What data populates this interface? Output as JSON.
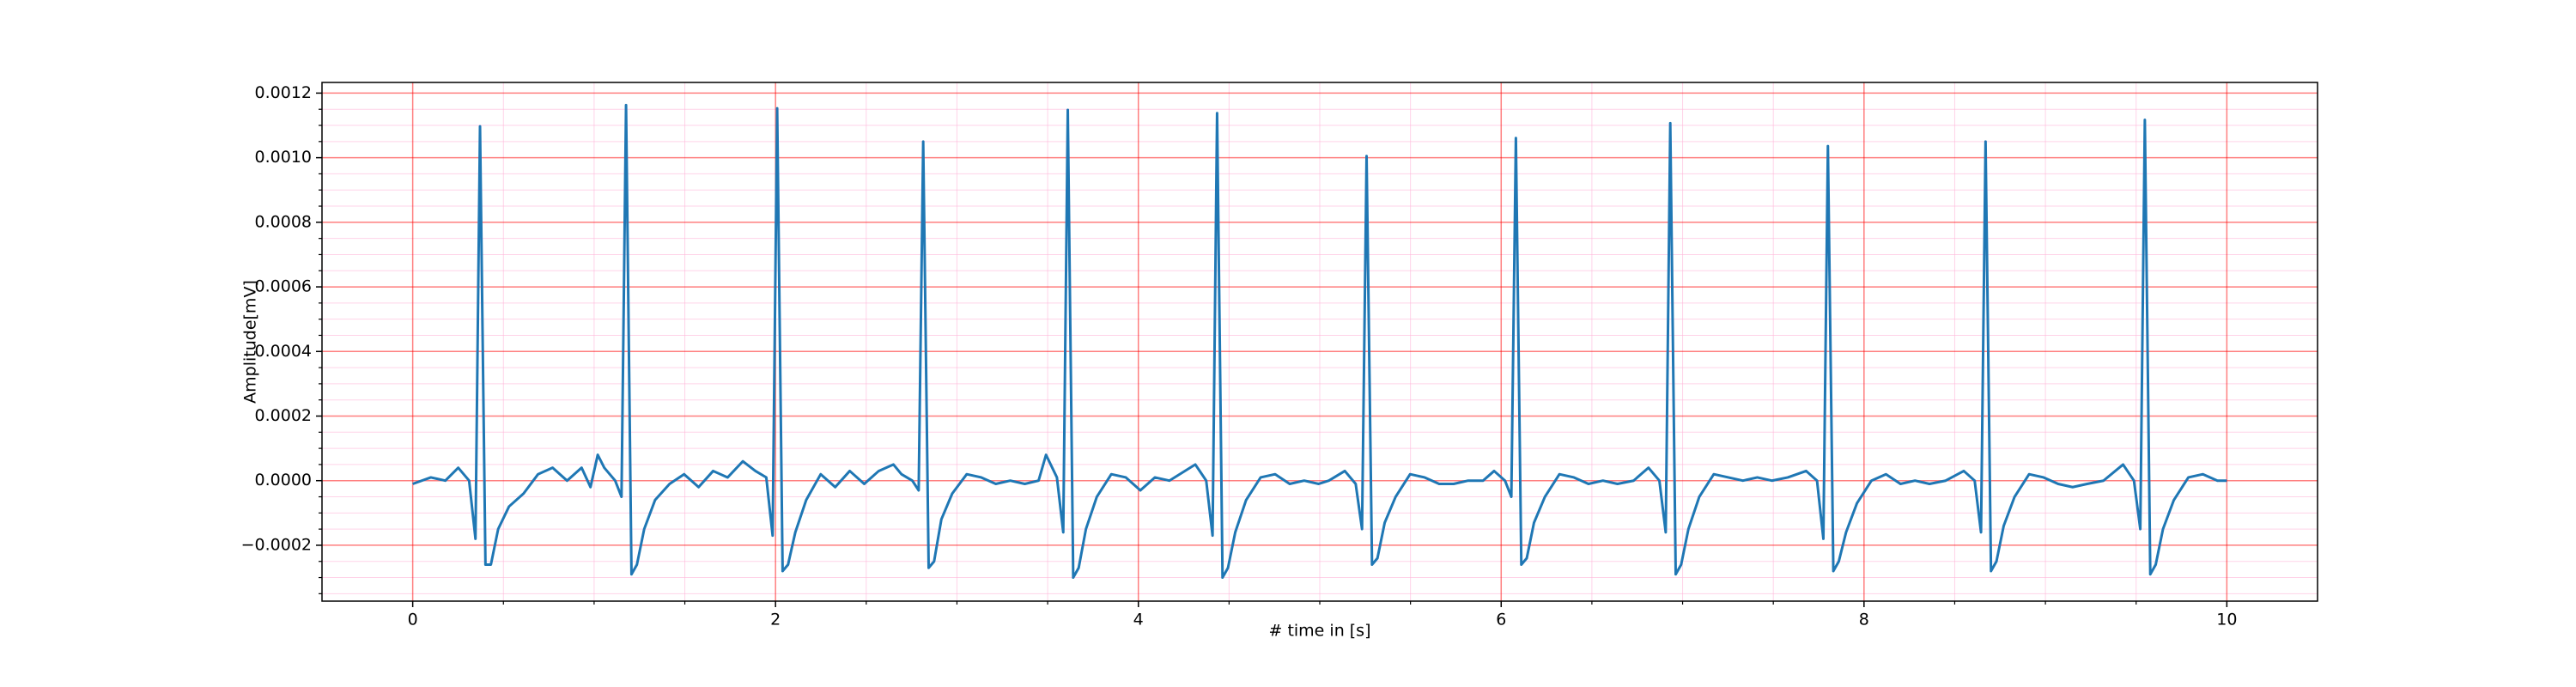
{
  "chart_data": {
    "type": "line",
    "xlabel": "# time in [s]",
    "ylabel": "Amplitude[mV]",
    "xlim": [
      -0.5,
      10.5
    ],
    "ylim": [
      -0.000373,
      0.001233
    ],
    "xticks": [
      0,
      2,
      4,
      6,
      8,
      10
    ],
    "yticks": [
      {
        "value": -0.0002,
        "label": "−0.0002"
      },
      {
        "value": 0,
        "label": "0.0000"
      },
      {
        "value": 0.0002,
        "label": "0.0002"
      },
      {
        "value": 0.0004,
        "label": "0.0004"
      },
      {
        "value": 0.0006,
        "label": "0.0006"
      },
      {
        "value": 0.0008,
        "label": "0.0008"
      },
      {
        "value": 0.001,
        "label": "0.0010"
      },
      {
        "value": 0.0012,
        "label": "0.0012"
      }
    ],
    "xminorticks": [
      0.5,
      1,
      1.5,
      2.5,
      3,
      3.5,
      4.5,
      5,
      5.5,
      6.5,
      7,
      7.5,
      8.5,
      9,
      9.5
    ],
    "yminorticks": [
      -0.00035,
      -0.0003,
      -0.00025,
      -0.00015,
      -0.0001,
      -5e-05,
      5e-05,
      0.0001,
      0.00015,
      0.00025,
      0.0003,
      0.00035,
      0.00045,
      0.0005,
      0.00055,
      0.00065,
      0.0007,
      0.00075,
      0.00085,
      0.0009,
      0.00095,
      0.00105,
      0.0011,
      0.00115
    ],
    "grid": true,
    "grid_color": "#ff0000",
    "minor_grid_color": "#ffb6d9",
    "series": [
      {
        "color": "#1f77b4",
        "x": [
          0,
          0.1,
          0.18,
          0.251,
          0.311,
          0.346,
          0.371,
          0.401,
          0.431,
          0.471,
          0.531,
          0.611,
          0.691,
          0.771,
          0.851,
          0.931,
          0.98,
          1.02,
          1.056,
          1.116,
          1.151,
          1.176,
          1.206,
          1.236,
          1.276,
          1.336,
          1.416,
          1.496,
          1.576,
          1.656,
          1.736,
          1.82,
          1.889,
          1.949,
          1.984,
          2.009,
          2.039,
          2.069,
          2.109,
          2.169,
          2.249,
          2.329,
          2.409,
          2.489,
          2.569,
          2.65,
          2.694,
          2.754,
          2.789,
          2.814,
          2.844,
          2.874,
          2.914,
          2.974,
          3.054,
          3.134,
          3.214,
          3.294,
          3.374,
          3.45,
          3.491,
          3.551,
          3.586,
          3.611,
          3.641,
          3.671,
          3.711,
          3.771,
          3.851,
          3.931,
          4.011,
          4.091,
          4.171,
          4.314,
          4.374,
          4.409,
          4.434,
          4.464,
          4.494,
          4.534,
          4.594,
          4.674,
          4.754,
          4.834,
          4.914,
          4.994,
          5.05,
          5.138,
          5.198,
          5.233,
          5.258,
          5.288,
          5.318,
          5.358,
          5.418,
          5.498,
          5.578,
          5.658,
          5.738,
          5.818,
          5.9,
          5.961,
          6.021,
          6.056,
          6.081,
          6.111,
          6.141,
          6.181,
          6.241,
          6.321,
          6.401,
          6.481,
          6.561,
          6.641,
          6.73,
          6.812,
          6.872,
          6.907,
          6.932,
          6.962,
          6.992,
          7.032,
          7.092,
          7.172,
          7.252,
          7.332,
          7.412,
          7.492,
          7.58,
          7.681,
          7.741,
          7.776,
          7.801,
          7.831,
          7.861,
          7.901,
          7.961,
          8.041,
          8.121,
          8.201,
          8.281,
          8.361,
          8.45,
          8.55,
          8.61,
          8.645,
          8.67,
          8.7,
          8.73,
          8.77,
          8.83,
          8.91,
          8.99,
          9.07,
          9.15,
          9.23,
          9.32,
          9.428,
          9.488,
          9.523,
          9.548,
          9.578,
          9.608,
          9.648,
          9.708,
          9.788,
          9.868,
          9.948,
          10.0
        ],
        "values": [
          -1e-05,
          1e-05,
          0.0,
          4e-05,
          0.0,
          -0.00018,
          0.001097,
          -0.00026,
          -0.00026,
          -0.00015,
          -8e-05,
          -4e-05,
          2e-05,
          4e-05,
          0.0,
          4e-05,
          -2e-05,
          8e-05,
          4e-05,
          0.0,
          -5e-05,
          0.001163,
          -0.00029,
          -0.00026,
          -0.00015,
          -6e-05,
          -1e-05,
          2e-05,
          -2e-05,
          3e-05,
          1e-05,
          6e-05,
          3e-05,
          1e-05,
          -0.00017,
          0.001153,
          -0.00028,
          -0.00026,
          -0.00016,
          -6e-05,
          2e-05,
          -2e-05,
          3e-05,
          -1e-05,
          3e-05,
          5e-05,
          2e-05,
          0.0,
          -3e-05,
          0.00105,
          -0.00027,
          -0.00025,
          -0.00012,
          -4e-05,
          2e-05,
          1e-05,
          -1e-05,
          0.0,
          -1e-05,
          0.0,
          8e-05,
          1e-05,
          -0.00016,
          0.001148,
          -0.0003,
          -0.00027,
          -0.00015,
          -5e-05,
          2e-05,
          1e-05,
          -3e-05,
          1e-05,
          0.0,
          5e-05,
          0.0,
          -0.00017,
          0.001138,
          -0.0003,
          -0.00027,
          -0.00016,
          -6e-05,
          1e-05,
          2e-05,
          -1e-05,
          0.0,
          -1e-05,
          0.0,
          3e-05,
          -1e-05,
          -0.00015,
          0.001005,
          -0.00026,
          -0.00024,
          -0.00013,
          -5e-05,
          2e-05,
          1e-05,
          -1e-05,
          -1e-05,
          0.0,
          0.0,
          3e-05,
          0.0,
          -5e-05,
          0.001061,
          -0.00026,
          -0.00024,
          -0.00013,
          -5e-05,
          2e-05,
          1e-05,
          -1e-05,
          0.0,
          -1e-05,
          0.0,
          4e-05,
          0.0,
          -0.00016,
          0.001107,
          -0.00029,
          -0.00026,
          -0.00015,
          -5e-05,
          2e-05,
          1e-05,
          0.0,
          1e-05,
          0.0,
          1e-05,
          3e-05,
          0.0,
          -0.00018,
          0.001036,
          -0.00028,
          -0.00025,
          -0.00016,
          -7e-05,
          0.0,
          2e-05,
          -1e-05,
          0.0,
          -1e-05,
          0.0,
          3e-05,
          0.0,
          -0.00016,
          0.00105,
          -0.00028,
          -0.00025,
          -0.00014,
          -5e-05,
          2e-05,
          1e-05,
          -1e-05,
          -2e-05,
          -1e-05,
          0.0,
          5e-05,
          0.0,
          -0.00015,
          0.001117,
          -0.00029,
          -0.00026,
          -0.00015,
          -6e-05,
          1e-05,
          2e-05,
          0.0,
          0.0
        ]
      }
    ]
  }
}
